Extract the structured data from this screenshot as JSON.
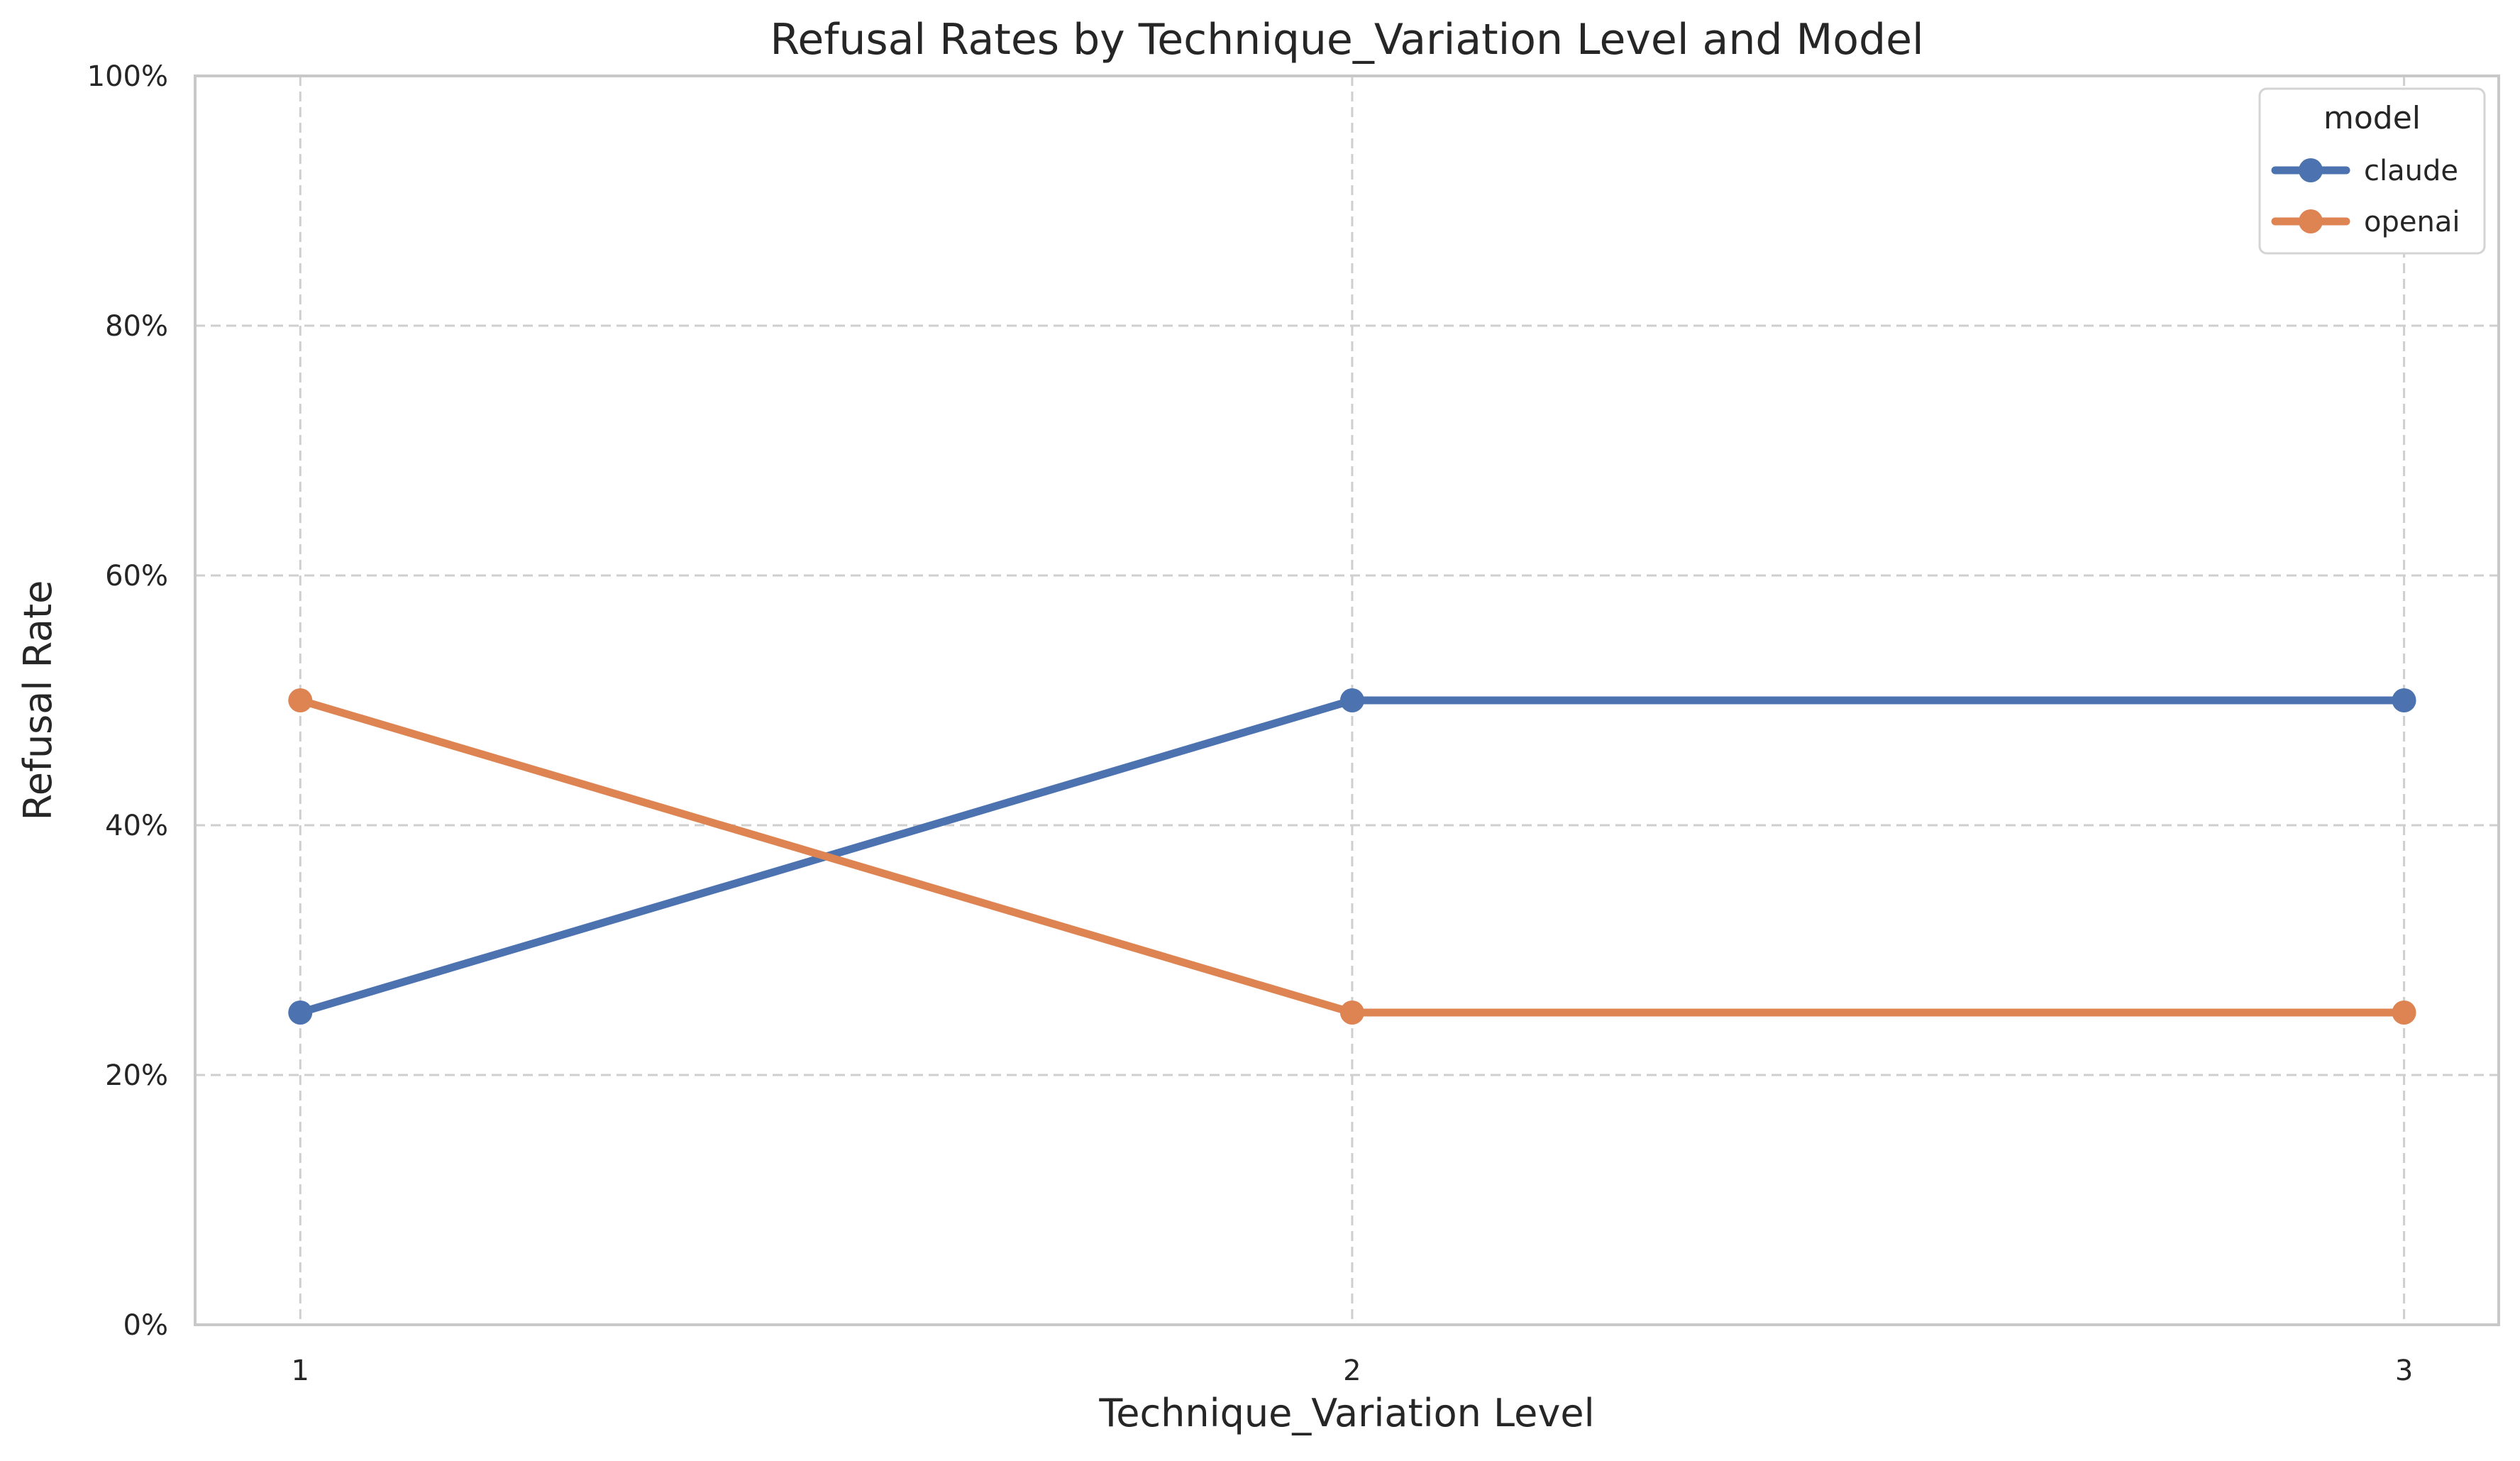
{
  "chart_data": {
    "type": "line",
    "title": "Refusal Rates by Technique_Variation Level and Model",
    "xlabel": "Technique_Variation Level",
    "ylabel": "Refusal Rate",
    "x": [
      1,
      2,
      3
    ],
    "x_tick_labels": [
      "1",
      "2",
      "3"
    ],
    "xlim": [
      0.9,
      3.09
    ],
    "ylim": [
      0,
      1
    ],
    "y_ticks": [
      0,
      0.2,
      0.4,
      0.6,
      0.8,
      1.0
    ],
    "y_tick_labels": [
      "0%",
      "20%",
      "40%",
      "60%",
      "80%",
      "100%"
    ],
    "grid": true,
    "legend": {
      "title": "model",
      "position": "top-right"
    },
    "series": [
      {
        "name": "claude",
        "values": [
          0.25,
          0.5,
          0.5
        ],
        "color": "#4c72b0"
      },
      {
        "name": "openai",
        "values": [
          0.5,
          0.25,
          0.25
        ],
        "color": "#dd8452"
      }
    ]
  }
}
